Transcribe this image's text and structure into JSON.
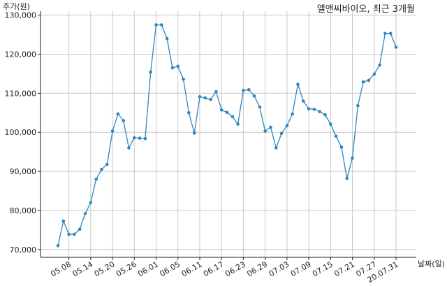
{
  "chart_data": {
    "type": "line",
    "title": "엘앤씨바이오, 최근 3개월",
    "xlabel": "날짜(일)",
    "ylabel": "주가(원)",
    "grid": true,
    "line_color": "#2e86c1",
    "ylim": [
      68000,
      131000
    ],
    "y_ticks": [
      {
        "value": 70000,
        "label": "70,000"
      },
      {
        "value": 80000,
        "label": "80,000"
      },
      {
        "value": 90000,
        "label": "90,000"
      },
      {
        "value": 100000,
        "label": "100,000"
      },
      {
        "value": 110000,
        "label": "110,000"
      },
      {
        "value": 120000,
        "label": "120,000"
      },
      {
        "value": 130000,
        "label": "130,000"
      }
    ],
    "x_ticks": [
      {
        "index": 2,
        "label": "05.08"
      },
      {
        "index": 6,
        "label": "05.14"
      },
      {
        "index": 10,
        "label": "05.20"
      },
      {
        "index": 14,
        "label": "05.26"
      },
      {
        "index": 18,
        "label": "06.01"
      },
      {
        "index": 22,
        "label": "06.05"
      },
      {
        "index": 26,
        "label": "06.11"
      },
      {
        "index": 30,
        "label": "06.17"
      },
      {
        "index": 34,
        "label": "06.23"
      },
      {
        "index": 38,
        "label": "06.29"
      },
      {
        "index": 42,
        "label": "07.03"
      },
      {
        "index": 46,
        "label": "07.09"
      },
      {
        "index": 50,
        "label": "07.15"
      },
      {
        "index": 54,
        "label": "07.21"
      },
      {
        "index": 58,
        "label": "07.27"
      },
      {
        "index": 62,
        "label": "20.07.31"
      }
    ],
    "series": [
      {
        "values": [
          71000,
          77300,
          73900,
          73900,
          75200,
          79200,
          82000,
          88000,
          90500,
          91800,
          100300,
          104700,
          103000,
          96000,
          98600,
          98500,
          98400,
          115400,
          127500,
          127500,
          124000,
          116500,
          116900,
          113600,
          105000,
          99800,
          109100,
          108800,
          108400,
          110400,
          105700,
          105100,
          104000,
          102100,
          110700,
          110900,
          109300,
          106500,
          100300,
          101300,
          96000,
          99700,
          101700,
          104700,
          112300,
          108000,
          106000,
          105900,
          105300,
          104500,
          102100,
          99000,
          96200,
          88200,
          93400,
          106800,
          112900,
          113300,
          114900,
          117200,
          125300,
          125300,
          121800
        ]
      }
    ]
  }
}
